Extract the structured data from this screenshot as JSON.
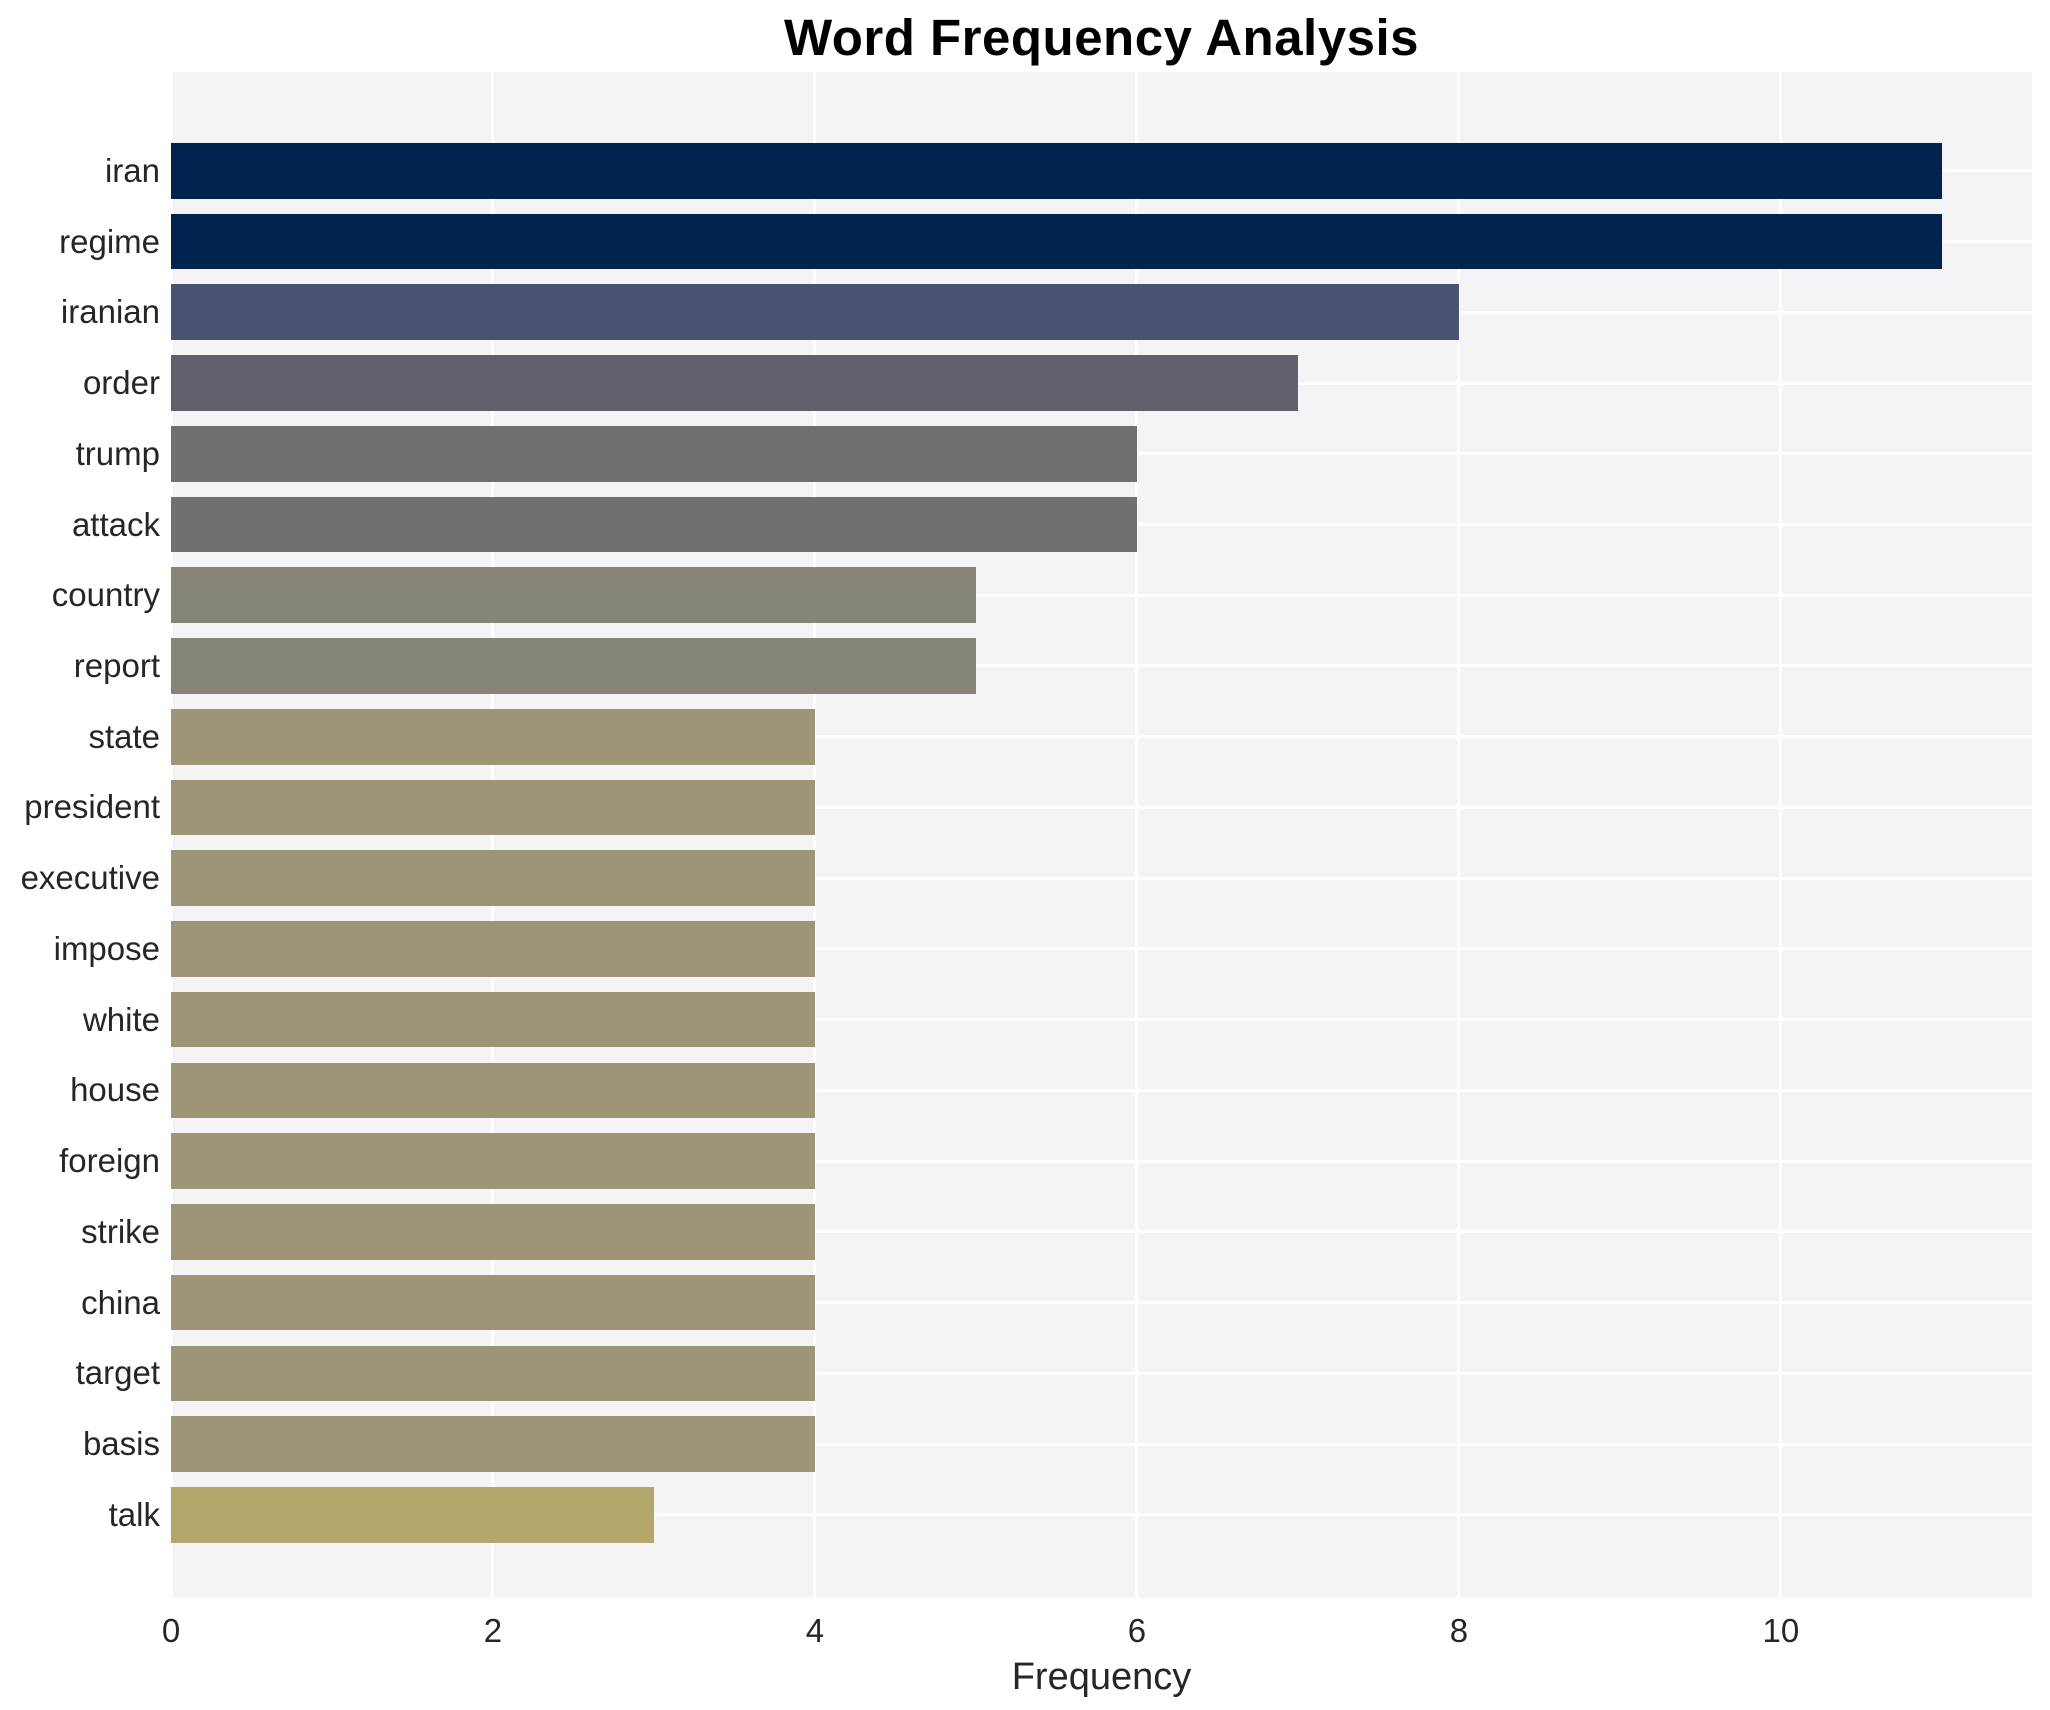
{
  "title": "Word Frequency Analysis",
  "chart_data": {
    "type": "bar",
    "orientation": "horizontal",
    "title": "Word Frequency Analysis",
    "xlabel": "Frequency",
    "ylabel": "",
    "categories": [
      "iran",
      "regime",
      "iranian",
      "order",
      "trump",
      "attack",
      "country",
      "report",
      "state",
      "president",
      "executive",
      "impose",
      "white",
      "house",
      "foreign",
      "strike",
      "china",
      "target",
      "basis",
      "talk"
    ],
    "values": [
      11,
      11,
      8,
      7,
      6,
      6,
      5,
      5,
      4,
      4,
      4,
      4,
      4,
      4,
      4,
      4,
      4,
      4,
      4,
      3
    ],
    "bar_colors": [
      "#02234e",
      "#02234e",
      "#4a5470",
      "#5f616d",
      "#6f7072",
      "#6f7072",
      "#878578",
      "#878578",
      "#9e9476",
      "#9e9476",
      "#9e9476",
      "#9e9476",
      "#9e9476",
      "#9e9476",
      "#9e9476",
      "#9e9476",
      "#9e9476",
      "#9e9476",
      "#9e9476",
      "#b3a76c"
    ],
    "xticks": [
      0,
      2,
      4,
      6,
      8,
      10
    ],
    "xlim": [
      0,
      11.56
    ],
    "grid": true,
    "legend_position": "none",
    "plot_bg": "#f4f4f6",
    "grid_color": "#ffffff",
    "figure_bg": "#ffffff",
    "text_color": "#262626",
    "title_color": "#000000"
  }
}
